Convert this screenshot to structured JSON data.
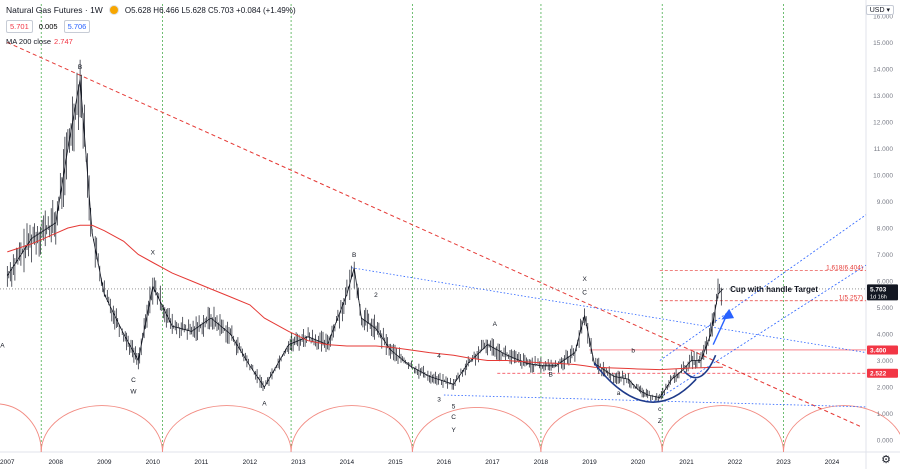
{
  "header": {
    "symbol_title": "Natural Gas Futures · 1W",
    "ohlc": "O5.628 H6.466 L5.628 C5.703 +0.084 (+1.49%)",
    "bid": "5.701",
    "spread": "0.005",
    "ask": "5.706",
    "ma_label": "MA 200 close",
    "ma_value": "2.747",
    "currency": "USD"
  },
  "colors": {
    "price_bars": "#131722",
    "ma_line": "#e53935",
    "trend_dashed": "#e53935",
    "channel_blue": "#2962ff",
    "cup_curve": "#1e3a8a",
    "fib_red": "#e53935",
    "cycle_arcs": "#f28b82",
    "vertical_cycle_lines": "#4caf50",
    "badge_dark": "#131722",
    "badge_red": "#f23645"
  },
  "chart_data": {
    "type": "line",
    "x": [
      2007.0,
      2007.5,
      2008.0,
      2008.25,
      2008.5,
      2008.75,
      2009.0,
      2009.4,
      2009.7,
      2010.0,
      2010.4,
      2010.8,
      2011.2,
      2011.6,
      2012.0,
      2012.3,
      2012.8,
      2013.2,
      2013.6,
      2014.0,
      2014.15,
      2014.3,
      2014.6,
      2014.9,
      2015.3,
      2015.7,
      2016.2,
      2016.5,
      2016.9,
      2017.3,
      2017.7,
      2018.0,
      2018.3,
      2018.7,
      2018.9,
      2019.1,
      2019.5,
      2019.8,
      2020.0,
      2020.2,
      2020.45,
      2020.7,
      2020.9,
      2021.1,
      2021.3,
      2021.5,
      2021.65,
      2021.75
    ],
    "series": [
      {
        "name": "",
        "values": [
          6.2,
          7.6,
          8.2,
          11.0,
          13.6,
          7.8,
          5.5,
          4.0,
          3.0,
          5.8,
          4.3,
          4.1,
          4.6,
          4.0,
          2.8,
          2.0,
          3.6,
          3.9,
          3.6,
          5.5,
          6.5,
          4.6,
          4.2,
          3.4,
          2.8,
          2.4,
          2.1,
          2.9,
          3.6,
          3.2,
          2.9,
          2.8,
          2.8,
          3.3,
          4.7,
          2.9,
          2.4,
          2.3,
          1.9,
          1.7,
          1.6,
          2.3,
          2.6,
          3.0,
          3.0,
          4.0,
          5.5,
          5.703
        ]
      },
      {
        "name": "MA 200 close",
        "values": [
          7.1,
          7.4,
          7.8,
          8.0,
          8.1,
          8.1,
          7.9,
          7.5,
          7.0,
          6.7,
          6.3,
          6.0,
          5.7,
          5.4,
          5.1,
          4.6,
          4.1,
          3.75,
          3.6,
          3.55,
          3.55,
          3.55,
          3.55,
          3.5,
          3.4,
          3.3,
          3.2,
          3.1,
          3.0,
          3.0,
          2.95,
          2.92,
          2.9,
          2.85,
          2.8,
          2.75,
          2.72,
          2.7,
          2.68,
          2.67,
          2.66,
          2.68,
          2.7,
          2.72,
          2.73,
          2.74,
          2.745,
          2.747
        ]
      }
    ],
    "xlim": [
      2006.85,
      2024.7
    ],
    "ylim": [
      -0.45,
      16.45
    ],
    "x_ticks": [
      "2007",
      "2008",
      "2009",
      "2010",
      "2011",
      "2012",
      "2013",
      "2014",
      "2015",
      "2016",
      "2017",
      "2018",
      "2019",
      "2020",
      "2021",
      "2022",
      "2023",
      "2024"
    ],
    "y_ticks": [
      "16.000",
      "15.000",
      "14.000",
      "13.000",
      "12.000",
      "11.000",
      "10.000",
      "9.000",
      "8.000",
      "7.000",
      "6.000",
      "5.000",
      "4.000",
      "3.000",
      "2.000",
      "1.000",
      "0.000"
    ],
    "price_badges": [
      "5.703",
      "1d 16h",
      "3.400",
      "2.522"
    ],
    "fib_labels": [
      "1.618(6.404)",
      "1(5.257)"
    ],
    "annotation": "Cup with handle Target",
    "wave_labels": [
      {
        "text": "B",
        "x": 2008.5,
        "y": 14.0
      },
      {
        "text": "A",
        "x": 2006.9,
        "y": 3.5
      },
      {
        "text": "C",
        "x": 2009.6,
        "y": 2.2
      },
      {
        "text": "W",
        "x": 2009.6,
        "y": 1.75
      },
      {
        "text": "X",
        "x": 2010.0,
        "y": 7.0
      },
      {
        "text": "A",
        "x": 2012.3,
        "y": 1.3
      },
      {
        "text": "B",
        "x": 2014.15,
        "y": 6.9
      },
      {
        "text": "2",
        "x": 2014.6,
        "y": 5.4
      },
      {
        "text": "4",
        "x": 2015.9,
        "y": 3.1
      },
      {
        "text": "3",
        "x": 2015.9,
        "y": 1.45
      },
      {
        "text": "5",
        "x": 2016.2,
        "y": 1.2
      },
      {
        "text": "C",
        "x": 2016.2,
        "y": 0.8
      },
      {
        "text": "Y",
        "x": 2016.2,
        "y": 0.3
      },
      {
        "text": "A",
        "x": 2017.05,
        "y": 4.3
      },
      {
        "text": "B",
        "x": 2018.2,
        "y": 2.4
      },
      {
        "text": "X",
        "x": 2018.9,
        "y": 6.0
      },
      {
        "text": "C",
        "x": 2018.9,
        "y": 5.5
      },
      {
        "text": "a",
        "x": 2019.6,
        "y": 1.7
      },
      {
        "text": "b",
        "x": 2019.9,
        "y": 3.3
      },
      {
        "text": "c",
        "x": 2020.45,
        "y": 1.1
      },
      {
        "text": "Z",
        "x": 2020.45,
        "y": 0.65
      }
    ],
    "grid": false,
    "legend": "top-left"
  }
}
